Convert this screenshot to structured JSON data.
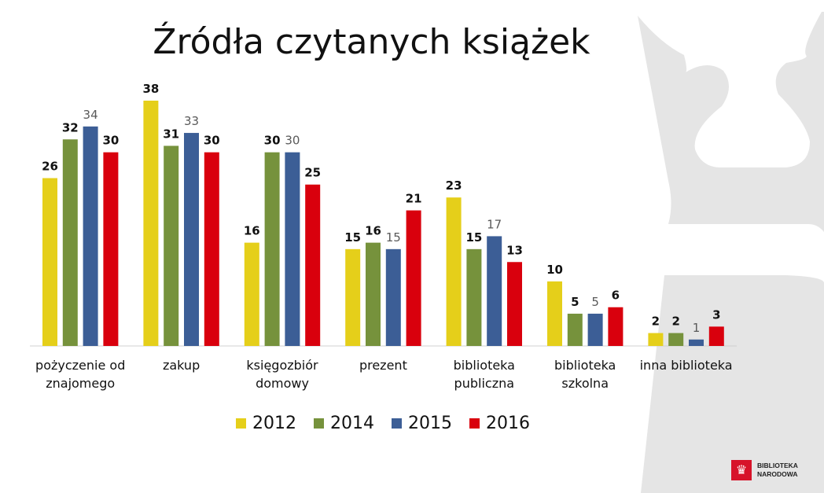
{
  "logo": {
    "line1": "BIBLIOTEKA",
    "line2": "NARODOWA"
  },
  "chart_data": {
    "type": "bar",
    "title": "Źródła czytanych książek",
    "categories": [
      [
        "pożyczenie od",
        "znajomego"
      ],
      [
        "zakup"
      ],
      [
        "księgozbiór",
        "domowy"
      ],
      [
        "prezent"
      ],
      [
        "biblioteka",
        "publiczna"
      ],
      [
        "biblioteka",
        "szkolna"
      ],
      [
        "inna biblioteka"
      ]
    ],
    "series": [
      {
        "name": "2012",
        "color": "#e5cf1a",
        "values": [
          26,
          38,
          16,
          15,
          23,
          10,
          2
        ]
      },
      {
        "name": "2014",
        "color": "#76923c",
        "values": [
          32,
          31,
          30,
          16,
          15,
          5,
          2
        ]
      },
      {
        "name": "2015",
        "color": "#3c5e96",
        "values": [
          34,
          33,
          30,
          15,
          17,
          5,
          1
        ]
      },
      {
        "name": "2016",
        "color": "#d9000d",
        "values": [
          30,
          30,
          25,
          21,
          13,
          6,
          3
        ]
      }
    ],
    "ylim": [
      0,
      38
    ],
    "legend": "bottom",
    "grid": false
  }
}
